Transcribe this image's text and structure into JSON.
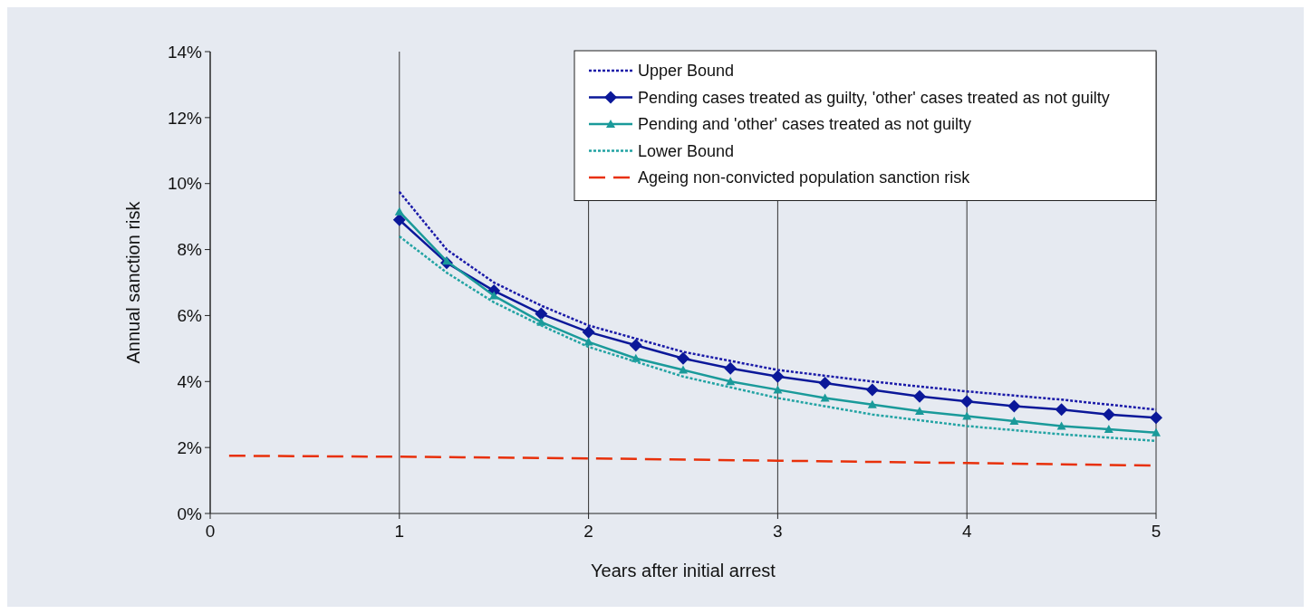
{
  "chart_data": {
    "type": "line",
    "xlabel": "Years after initial arrest",
    "ylabel": "Annual sanction risk",
    "xlim": [
      0,
      5
    ],
    "xticks": [
      0,
      1,
      2,
      3,
      4,
      5
    ],
    "ylim": [
      0,
      14
    ],
    "yticks": [
      {
        "value": 0,
        "label": "0%"
      },
      {
        "value": 2,
        "label": "2%"
      },
      {
        "value": 4,
        "label": "4%"
      },
      {
        "value": 6,
        "label": "6%"
      },
      {
        "value": 8,
        "label": "8%"
      },
      {
        "value": 10,
        "label": "10%"
      },
      {
        "value": 12,
        "label": "12%"
      },
      {
        "value": 14,
        "label": "14%"
      }
    ],
    "grid": "x",
    "legend": "top right",
    "series": [
      {
        "name": "Upper Bound",
        "color": "#1a1aa8",
        "line_style": "dotted",
        "marker": "none",
        "x": [
          1,
          1.25,
          1.5,
          1.75,
          2,
          2.5,
          3,
          3.5,
          4,
          4.5,
          5
        ],
        "values": [
          9.75,
          8.0,
          7.0,
          6.3,
          5.7,
          4.9,
          4.35,
          4.0,
          3.7,
          3.45,
          3.15
        ]
      },
      {
        "name": "Pending cases treated as guilty, 'other' cases treated as not guilty",
        "color": "#0b1899",
        "line_style": "solid",
        "marker": "diamond",
        "x": [
          1,
          1.25,
          1.5,
          1.75,
          2,
          2.25,
          2.5,
          2.75,
          3,
          3.25,
          3.5,
          3.75,
          4,
          4.25,
          4.5,
          4.75,
          5
        ],
        "values": [
          8.9,
          7.6,
          6.75,
          6.05,
          5.5,
          5.1,
          4.7,
          4.4,
          4.15,
          3.95,
          3.75,
          3.55,
          3.4,
          3.25,
          3.15,
          3.0,
          2.9
        ]
      },
      {
        "name": "Pending and 'other' cases treated as not guilty",
        "color": "#1a9a9a",
        "line_style": "solid",
        "marker": "triangle",
        "x": [
          1,
          1.25,
          1.5,
          1.75,
          2,
          2.25,
          2.5,
          2.75,
          3,
          3.25,
          3.5,
          3.75,
          4,
          4.25,
          4.5,
          4.75,
          5
        ],
        "values": [
          9.15,
          7.65,
          6.6,
          5.8,
          5.2,
          4.7,
          4.35,
          4.0,
          3.75,
          3.5,
          3.3,
          3.1,
          2.95,
          2.8,
          2.65,
          2.55,
          2.45
        ]
      },
      {
        "name": "Lower Bound",
        "color": "#22a3a3",
        "line_style": "dotted",
        "marker": "none",
        "x": [
          1,
          1.25,
          1.5,
          1.75,
          2,
          2.5,
          3,
          3.5,
          4,
          4.5,
          5
        ],
        "values": [
          8.4,
          7.3,
          6.4,
          5.7,
          5.05,
          4.15,
          3.5,
          3.0,
          2.65,
          2.4,
          2.2
        ]
      },
      {
        "name": "Ageing non-convicted population sanction risk",
        "color": "#e8300a",
        "line_style": "dashed",
        "marker": "none",
        "x": [
          0.1,
          1,
          2,
          3,
          4,
          5
        ],
        "values": [
          1.75,
          1.72,
          1.67,
          1.6,
          1.53,
          1.45
        ]
      }
    ]
  }
}
